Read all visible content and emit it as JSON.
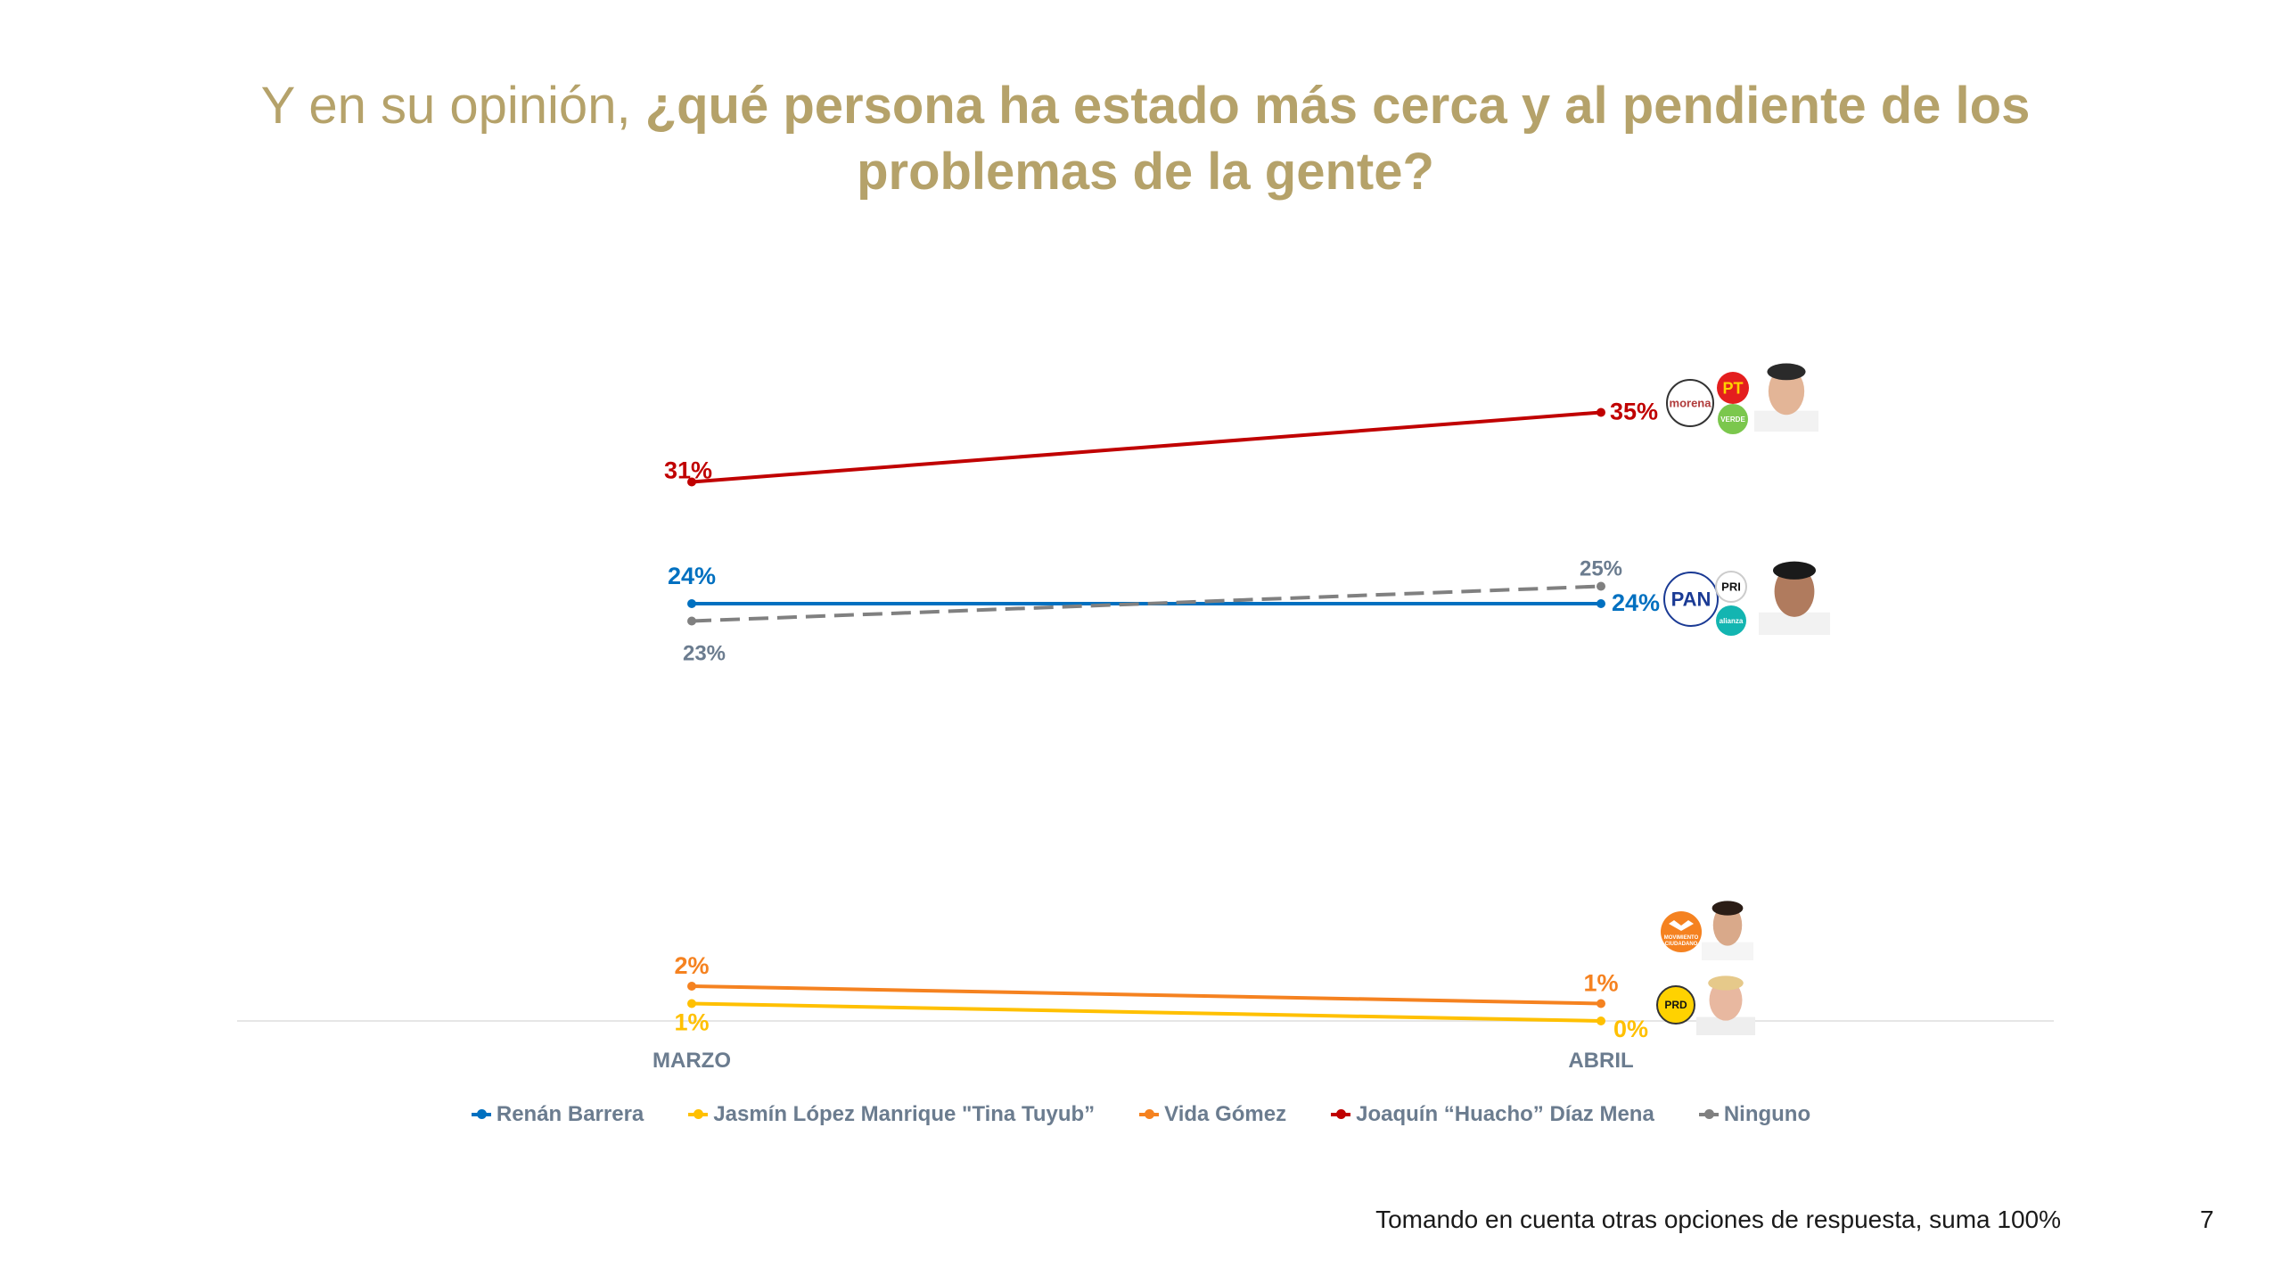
{
  "title": {
    "light": "Y en su opinión, ",
    "bold_line1": "¿qué persona ha estado más cerca y al pendiente de los",
    "bold_line2": "problemas de la gente?"
  },
  "chart_data": {
    "type": "line",
    "categories": [
      "MARZO",
      "ABRIL"
    ],
    "ylim": [
      0,
      40
    ],
    "grid": false,
    "legend_position": "bottom",
    "series": [
      {
        "name": "Renán Barrera",
        "values": [
          24,
          24
        ],
        "labels": [
          "24%",
          "24%"
        ],
        "color": "#0070C0",
        "dashed": false
      },
      {
        "name": "Jasmín López Manrique \"Tina Tuyub”",
        "values": [
          1,
          0
        ],
        "labels": [
          "1%",
          "0%"
        ],
        "color": "#FFC000",
        "dashed": false
      },
      {
        "name": "Vida Gómez",
        "values": [
          2,
          1
        ],
        "labels": [
          "2%",
          "1%"
        ],
        "color": "#F58220",
        "dashed": false
      },
      {
        "name": "Joaquín “Huacho” Díaz Mena",
        "values": [
          31,
          35
        ],
        "labels": [
          "31%",
          "35%"
        ],
        "color": "#C00000",
        "dashed": false
      },
      {
        "name": "Ninguno",
        "values": [
          23,
          25
        ],
        "labels": [
          "23%",
          "25%"
        ],
        "color": "#808080",
        "dashed": true
      }
    ]
  },
  "logos": [
    {
      "candidate": "Joaquín “Huacho” Díaz Mena",
      "parties": [
        "morena",
        "PT",
        "VERDE"
      ]
    },
    {
      "candidate": "Renán Barrera",
      "parties": [
        "PAN",
        "PRI",
        "alianza"
      ]
    },
    {
      "candidate": "Vida Gómez",
      "parties": [
        "MOVIMIENTO CIUDADANO"
      ]
    },
    {
      "candidate": "Jasmín López Manrique \"Tina Tuyub”",
      "parties": [
        "PRD"
      ]
    }
  ],
  "footer": "Tomando en cuenta otras opciones de respuesta, suma 100%",
  "page_number": "7"
}
